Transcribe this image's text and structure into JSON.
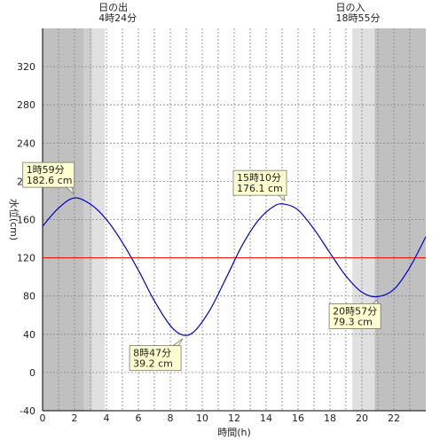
{
  "chart_data": {
    "type": "line",
    "title": "",
    "xlabel": "時間(h)",
    "ylabel": "水位(cm)",
    "xlim": [
      0,
      24
    ],
    "ylim": [
      -40,
      360
    ],
    "x_ticks": [
      0,
      2,
      4,
      6,
      8,
      10,
      12,
      14,
      16,
      18,
      20,
      22
    ],
    "y_ticks": [
      -40,
      0,
      40,
      80,
      120,
      160,
      200,
      240,
      280,
      320
    ],
    "grid": true,
    "reference_line": {
      "y": 120,
      "color": "#ff0000"
    },
    "sunrise": {
      "time": 4.4,
      "label_line1": "日の出",
      "label_line2": "4時24分"
    },
    "sunset": {
      "time": 18.917,
      "label_line1": "日の入",
      "label_line2": "18時55分"
    },
    "twilight_bands": [
      {
        "from": 0,
        "to": 2.6,
        "shade": "dark"
      },
      {
        "from": 2.6,
        "to": 3.1,
        "shade": "mid"
      },
      {
        "from": 3.1,
        "to": 3.9,
        "shade": "light"
      },
      {
        "from": 19.4,
        "to": 20.8,
        "shade": "light"
      },
      {
        "from": 20.8,
        "to": 24,
        "shade": "dark"
      }
    ],
    "series": [
      {
        "color": "#0000cc",
        "x": [
          0,
          1,
          1.983,
          3,
          4,
          5,
          6,
          7,
          8,
          8.783,
          9.5,
          10.5,
          11.5,
          12.5,
          13.5,
          14.5,
          15.167,
          16,
          17,
          18,
          19,
          20,
          20.95,
          22,
          23,
          24
        ],
        "y": [
          153,
          172,
          182.6,
          176,
          160,
          136,
          107,
          75,
          49,
          39.2,
          43,
          66,
          99,
          133,
          159,
          174,
          176.1,
          170,
          150,
          125,
          101,
          84,
          79.3,
          87,
          110,
          142
        ]
      }
    ],
    "annotations": [
      {
        "x": 1.983,
        "y": 182.6,
        "time": "1時59分",
        "value": "182.6 cm"
      },
      {
        "x": 8.783,
        "y": 39.2,
        "time": "8時47分",
        "value": "39.2 cm"
      },
      {
        "x": 15.167,
        "y": 176.1,
        "time": "15時10分",
        "value": "176.1 cm"
      },
      {
        "x": 20.95,
        "y": 79.3,
        "time": "20時57分",
        "value": "79.3 cm"
      }
    ]
  }
}
